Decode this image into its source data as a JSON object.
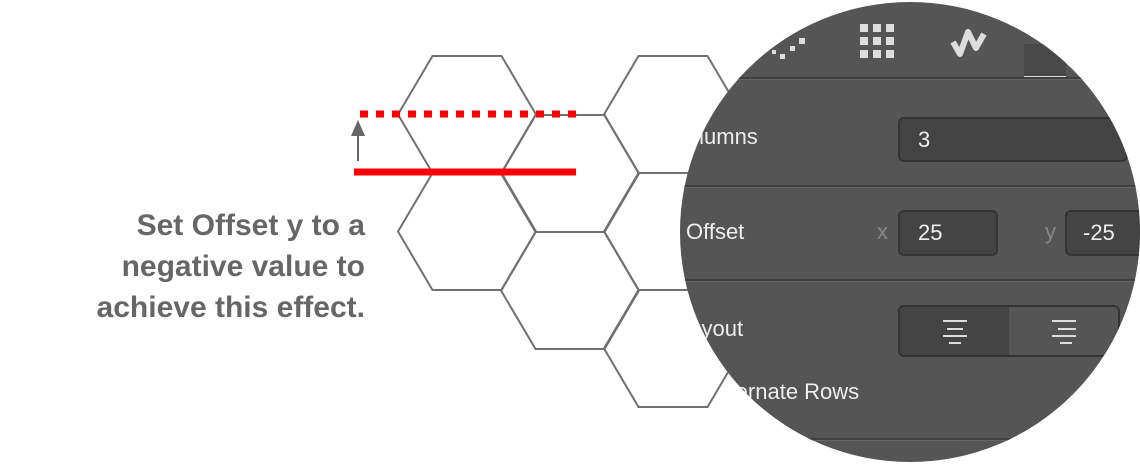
{
  "caption": {
    "lines": [
      "Set Offset y to a",
      "negative value to",
      "achieve this effect."
    ]
  },
  "colors": {
    "guide_line": "#ff0000",
    "hex_stroke": "#707070",
    "panel_bg": "#555555",
    "caption_text": "#666666"
  },
  "panel": {
    "tabs": [
      {
        "icon": "scatter-icon"
      },
      {
        "icon": "grid-icon"
      },
      {
        "icon": "wave-icon"
      },
      {
        "icon": "active-tab-icon"
      }
    ],
    "columns": {
      "label": "Columns",
      "value": "3"
    },
    "offset": {
      "label": "Offset",
      "x_label": "x",
      "x_value": "25",
      "y_label": "y",
      "y_value": "-25"
    },
    "layout": {
      "label": "Layout",
      "options": [
        "align-center-icon",
        "align-right-icon"
      ],
      "selected": 0
    },
    "alternate_rows": {
      "label": "Alternate Rows"
    }
  }
}
